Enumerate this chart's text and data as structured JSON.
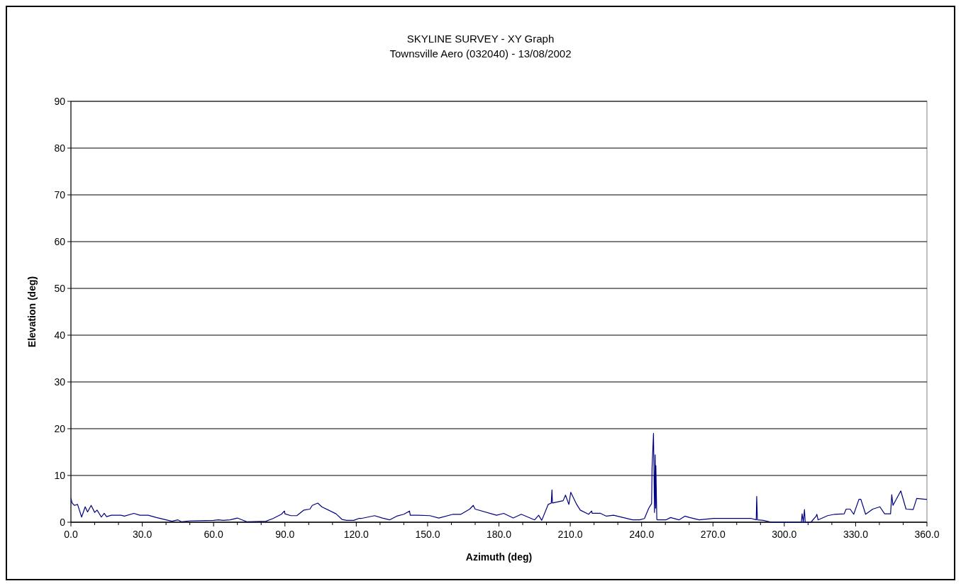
{
  "chart_data": {
    "type": "line",
    "title": "SKYLINE SURVEY - XY Graph",
    "subtitle": "Townsville Aero (032040) - 13/08/2002",
    "xlabel": "Azimuth (deg)",
    "ylabel": "Elevation (deg)",
    "xlim": [
      0,
      360
    ],
    "ylim": [
      0,
      90
    ],
    "xticks": [
      {
        "value": 0,
        "label": "0.0"
      },
      {
        "value": 10,
        "label": null
      },
      {
        "value": 20,
        "label": null
      },
      {
        "value": 30,
        "label": "30.0"
      },
      {
        "value": 40,
        "label": null
      },
      {
        "value": 50,
        "label": null
      },
      {
        "value": 60,
        "label": "60.0"
      },
      {
        "value": 70,
        "label": null
      },
      {
        "value": 80,
        "label": null
      },
      {
        "value": 90,
        "label": "90.0"
      },
      {
        "value": 100,
        "label": null
      },
      {
        "value": 110,
        "label": null
      },
      {
        "value": 120,
        "label": "120.0"
      },
      {
        "value": 130,
        "label": null
      },
      {
        "value": 140,
        "label": null
      },
      {
        "value": 150,
        "label": "150.0"
      },
      {
        "value": 160,
        "label": null
      },
      {
        "value": 170,
        "label": null
      },
      {
        "value": 180,
        "label": "180.0"
      },
      {
        "value": 190,
        "label": null
      },
      {
        "value": 200,
        "label": null
      },
      {
        "value": 210,
        "label": "210.0"
      },
      {
        "value": 220,
        "label": null
      },
      {
        "value": 230,
        "label": null
      },
      {
        "value": 240,
        "label": "240.0"
      },
      {
        "value": 250,
        "label": null
      },
      {
        "value": 260,
        "label": null
      },
      {
        "value": 270,
        "label": "270.0"
      },
      {
        "value": 280,
        "label": null
      },
      {
        "value": 290,
        "label": null
      },
      {
        "value": 300,
        "label": "300.0"
      },
      {
        "value": 310,
        "label": null
      },
      {
        "value": 320,
        "label": null
      },
      {
        "value": 330,
        "label": "330.0"
      },
      {
        "value": 340,
        "label": null
      },
      {
        "value": 350,
        "label": null
      },
      {
        "value": 360,
        "label": "360.0"
      }
    ],
    "yticks": [
      0,
      10,
      20,
      30,
      40,
      50,
      60,
      70,
      80,
      90
    ],
    "grid": "y",
    "marker": "none",
    "line_style": "solid",
    "series": [
      {
        "color": "#000080",
        "x": [
          0,
          0.5,
          1.5,
          2.8,
          4.5,
          6,
          7,
          8.5,
          10,
          11,
          12.8,
          14,
          15,
          17,
          21,
          22.5,
          26.5,
          29,
          32.5,
          36,
          40,
          42.5,
          45,
          46.5,
          50,
          60,
          62,
          64,
          67,
          70,
          72,
          74,
          82,
          85,
          88.5,
          89.8,
          90,
          92.5,
          95,
          98,
          100.5,
          101.5,
          103.8,
          105.5,
          111.5,
          114,
          116,
          119,
          121,
          122,
          127.7,
          131,
          134,
          137,
          140,
          142.4,
          142.7,
          146,
          151,
          154.7,
          160.7,
          164,
          167.7,
          169.2,
          170,
          179,
          182,
          186,
          189.4,
          195,
          196.7,
          198,
          200.7,
          202,
          202.3,
          202.5,
          207,
          208,
          209.4,
          210.2,
          212.7,
          214.2,
          217.7,
          219,
          219.2,
          222.7,
          225.2,
          228.2,
          232.2,
          236.2,
          239.2,
          241.2,
          243,
          244.2,
          244.4,
          245,
          245.4,
          245.7,
          245.9,
          246,
          246.4,
          246.7,
          250.2,
          252.2,
          255.7,
          258.2,
          260.2,
          264.2,
          270.2,
          286.2,
          288.2,
          288.4,
          288.7,
          291.2,
          294.7,
          307.2,
          307.5,
          308,
          308.5,
          308.8,
          311.2,
          313.4,
          313.7,
          314.2,
          318.2,
          321.2,
          325.2,
          326,
          327.7,
          329.2,
          331.4,
          332.2,
          334.2,
          337.2,
          340.2,
          342.2,
          344.7,
          345.2,
          345.7,
          349,
          351.2,
          354.2,
          355.7,
          359.2,
          360
        ],
        "values": [
          5.1,
          4.1,
          3.6,
          3.8,
          1.1,
          3.3,
          2.2,
          3.6,
          2.1,
          2.6,
          1.1,
          1.9,
          1.2,
          1.5,
          1.5,
          1.3,
          1.9,
          1.5,
          1.5,
          1,
          0.5,
          0.2,
          0.5,
          0.1,
          0.3,
          0.4,
          0.5,
          0.4,
          0.5,
          0.9,
          0.5,
          0.1,
          0.2,
          0.8,
          1.7,
          2.4,
          1.8,
          1.4,
          1.4,
          2.6,
          2.8,
          3.6,
          4.1,
          3.3,
          1.8,
          0.6,
          0.4,
          0.4,
          0.8,
          0.8,
          1.4,
          0.9,
          0.5,
          1.3,
          1.7,
          2.4,
          1.5,
          1.5,
          1.4,
          0.9,
          1.7,
          1.7,
          2.8,
          3.6,
          2.8,
          1.5,
          1.9,
          0.9,
          1.7,
          0.5,
          1.5,
          0.4,
          3.8,
          4.1,
          6.9,
          4.1,
          4.6,
          5.8,
          3.8,
          6.4,
          3.8,
          2.6,
          1.7,
          2.4,
          1.9,
          1.9,
          1.3,
          1.5,
          1,
          0.5,
          0.5,
          0.8,
          3,
          4,
          11.7,
          19,
          2.1,
          14.4,
          3,
          12.1,
          0.6,
          0.5,
          0.5,
          1,
          0.5,
          1.3,
          1,
          0.5,
          0.8,
          0.8,
          0.5,
          5.5,
          0.5,
          0.4,
          0,
          0,
          1.8,
          0,
          2.7,
          0,
          0,
          1.3,
          1.7,
          0.5,
          1.4,
          1.7,
          1.8,
          2.8,
          2.8,
          1.7,
          4.9,
          4.9,
          1.7,
          2.8,
          3.3,
          1.8,
          1.8,
          5.9,
          3.6,
          6.7,
          2.8,
          2.7,
          5.1,
          4.9,
          4.9
        ]
      }
    ]
  }
}
